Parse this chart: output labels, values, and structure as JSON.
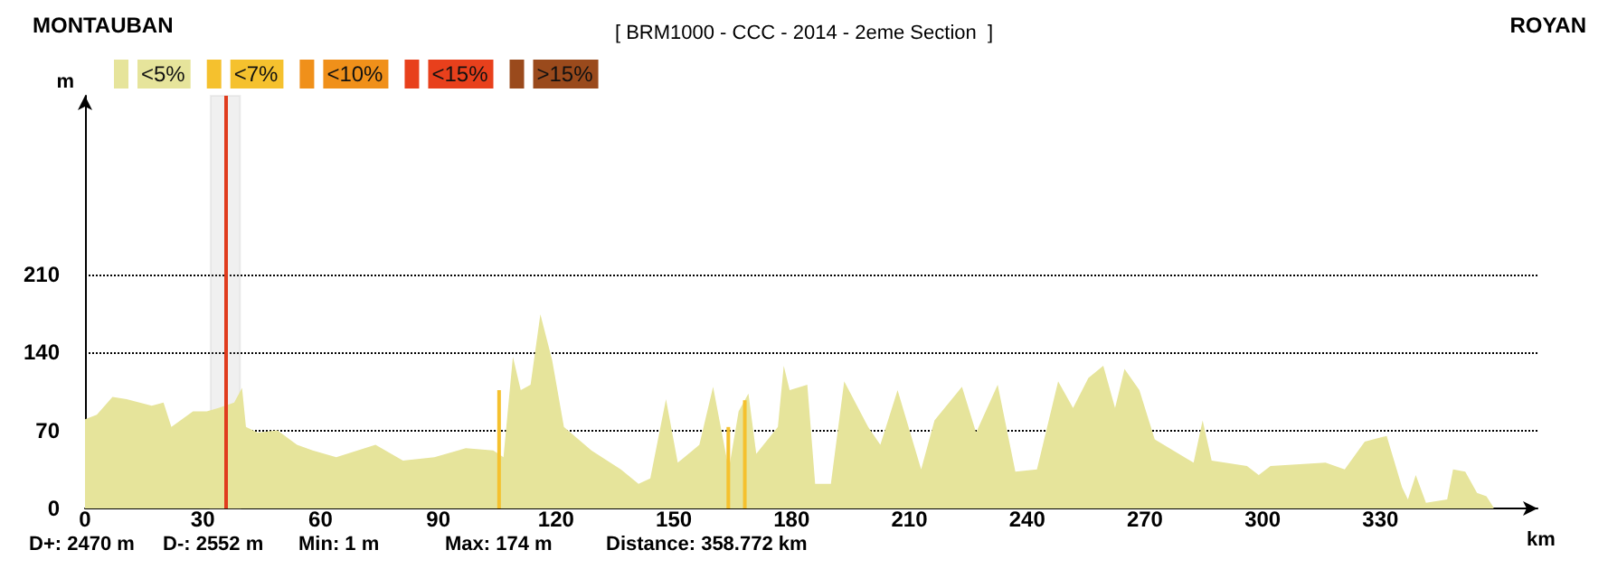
{
  "chart_data": {
    "type": "area",
    "title": "[ BRM1000 - CCC - 2014 - 2eme Section  ]",
    "xlabel": "km",
    "ylabel": "m",
    "annotations": [
      "MONTAUBAN",
      "ROYAN",
      "D+: 2470 m",
      "D-: 2552 m",
      "Min: 1 m",
      "Max: 174 m",
      "Distance: 358.772 km"
    ],
    "series": [
      {
        "name": "<5%",
        "color": "#e6e49b",
        "x": [
          0,
          3,
          7,
          10.6,
          17,
          20,
          22,
          27.5,
          31,
          34,
          38,
          40,
          41,
          44,
          49,
          54,
          58,
          64,
          74,
          81,
          89,
          97,
          104,
          106.6,
          109,
          111,
          113.5,
          116,
          119,
          122,
          129,
          136.5,
          141,
          144,
          148,
          151,
          156.5,
          160,
          164,
          166.5,
          169,
          171,
          176.5,
          178,
          179.5,
          184,
          186,
          190,
          193.4,
          199.5,
          202.6,
          207,
          213,
          216.4,
          223.4,
          227,
          232.5,
          237,
          242.5,
          247.9,
          251.7,
          255.6,
          259.4,
          262.4,
          264.8,
          268.6,
          272.5,
          282.4,
          284.7,
          287,
          296,
          299,
          302,
          316,
          320.9,
          326,
          331.6,
          335.5,
          337,
          339,
          341.6,
          347,
          348.5,
          351.6,
          354.6,
          357,
          358.8
        ],
        "values": [
          80,
          84,
          100,
          98,
          92,
          95,
          73,
          87,
          87,
          90,
          95,
          108,
          73,
          68,
          70,
          57,
          52,
          46,
          57,
          43,
          46,
          54,
          52,
          46,
          136,
          106,
          111,
          174,
          133,
          73,
          52,
          35,
          22,
          27,
          98,
          41,
          57,
          109,
          35,
          87,
          103,
          49,
          73,
          128,
          106,
          111,
          22,
          22,
          114,
          73,
          57,
          106,
          35,
          79,
          109,
          68,
          111,
          33,
          35,
          114,
          90,
          117,
          128,
          90,
          125,
          106,
          62,
          41,
          79,
          43,
          38,
          30,
          38,
          41,
          35,
          60,
          65,
          19,
          8,
          30,
          5,
          8,
          35,
          33,
          14,
          11,
          1
        ]
      },
      {
        "name": "<7%",
        "type": "bar",
        "color": "#f5c12e",
        "x": [
          107,
          165.4,
          169.6
        ],
        "values": [
          106,
          73,
          97
        ]
      },
      {
        "name": "<10%",
        "type": "bar",
        "color": "#f0901a"
      },
      {
        "name": "<15%",
        "type": "bar",
        "color": "#e8401c"
      },
      {
        "name": ">15%",
        "type": "bar",
        "color": "#9a4a1c"
      }
    ],
    "xlim": [
      0,
      370
    ],
    "xticks": [
      0,
      30,
      60,
      90,
      120,
      150,
      180,
      210,
      240,
      270,
      300,
      330
    ],
    "ylim": [
      0,
      370
    ],
    "yticks": [
      0,
      70,
      140,
      210
    ],
    "ref_lines": [
      {
        "axis": "x",
        "value": 36,
        "color": "#e03c1e"
      }
    ],
    "bands": [
      {
        "axis": "x",
        "from": 32,
        "to": 39.5,
        "color": "#999999"
      }
    ],
    "grid": "y",
    "legend": "top left",
    "marker": "none"
  }
}
